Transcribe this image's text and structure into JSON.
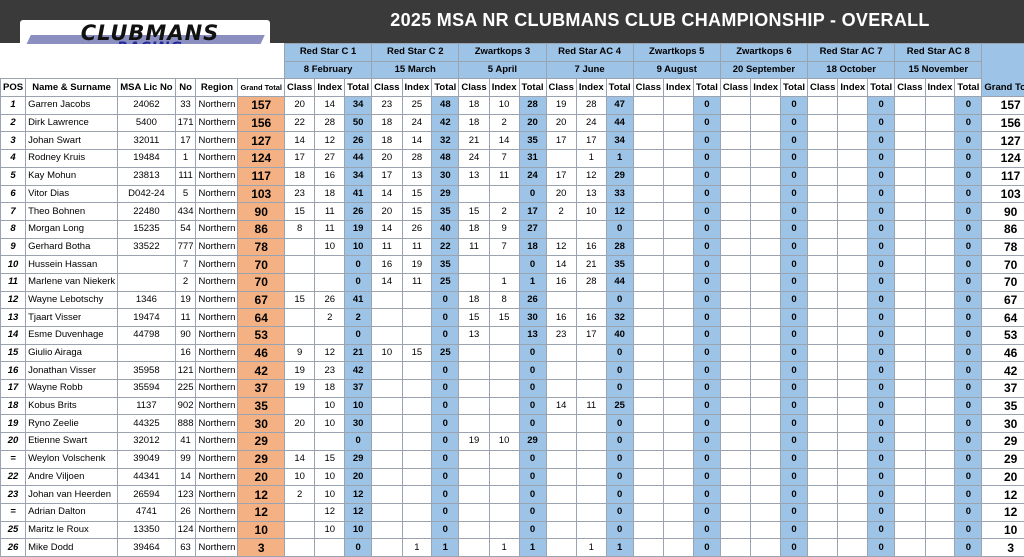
{
  "title": "2025 MSA NR CLUBMANS CLUB CHAMPIONSHIP - OVERALL",
  "logo": {
    "line1": "CLUBMANS",
    "line2": "RACING"
  },
  "rounds": [
    {
      "venue": "Red Star C 1",
      "date": "8 February"
    },
    {
      "venue": "Red Star C 2",
      "date": "15 March"
    },
    {
      "venue": "Zwartkops 3",
      "date": "5 April"
    },
    {
      "venue": "Red Star AC 4",
      "date": "7 June"
    },
    {
      "venue": "Zwartkops 5",
      "date": "9 August"
    },
    {
      "venue": "Zwartkops 6",
      "date": "20 September"
    },
    {
      "venue": "Red Star AC 7",
      "date": "18 October"
    },
    {
      "venue": "Red Star AC 8",
      "date": "15 November"
    }
  ],
  "headers": {
    "pos": "POS",
    "name": "Name & Surname",
    "lic": "MSA Lic No",
    "no": "No",
    "region": "Region",
    "grand_total": "Grand Total",
    "class": "Class",
    "index": "Index",
    "total": "Total",
    "grand_total_right": "Grand Total"
  },
  "rows": [
    {
      "pos": "1",
      "name": "Garren Jacobs",
      "lic": "24062",
      "no": "33",
      "region": "Northern",
      "gt": "157",
      "r": [
        [
          "20",
          "14",
          "34"
        ],
        [
          "23",
          "25",
          "48"
        ],
        [
          "18",
          "10",
          "28"
        ],
        [
          "19",
          "28",
          "47"
        ],
        [
          "",
          "",
          "0"
        ],
        [
          "",
          "",
          "0"
        ],
        [
          "",
          "",
          "0"
        ],
        [
          "",
          "",
          "0"
        ]
      ]
    },
    {
      "pos": "2",
      "name": "Dirk Lawrence",
      "lic": "5400",
      "no": "171",
      "region": "Northern",
      "gt": "156",
      "r": [
        [
          "22",
          "28",
          "50"
        ],
        [
          "18",
          "24",
          "42"
        ],
        [
          "18",
          "2",
          "20"
        ],
        [
          "20",
          "24",
          "44"
        ],
        [
          "",
          "",
          "0"
        ],
        [
          "",
          "",
          "0"
        ],
        [
          "",
          "",
          "0"
        ],
        [
          "",
          "",
          "0"
        ]
      ]
    },
    {
      "pos": "3",
      "name": "Johan Swart",
      "lic": "32011",
      "no": "17",
      "region": "Northern",
      "gt": "127",
      "r": [
        [
          "14",
          "12",
          "26"
        ],
        [
          "18",
          "14",
          "32"
        ],
        [
          "21",
          "14",
          "35"
        ],
        [
          "17",
          "17",
          "34"
        ],
        [
          "",
          "",
          "0"
        ],
        [
          "",
          "",
          "0"
        ],
        [
          "",
          "",
          "0"
        ],
        [
          "",
          "",
          "0"
        ]
      ]
    },
    {
      "pos": "4",
      "name": "Rodney Kruis",
      "lic": "19484",
      "no": "1",
      "region": "Northern",
      "gt": "124",
      "r": [
        [
          "17",
          "27",
          "44"
        ],
        [
          "20",
          "28",
          "48"
        ],
        [
          "24",
          "7",
          "31"
        ],
        [
          "",
          "1",
          "1"
        ],
        [
          "",
          "",
          "0"
        ],
        [
          "",
          "",
          "0"
        ],
        [
          "",
          "",
          "0"
        ],
        [
          "",
          "",
          "0"
        ]
      ]
    },
    {
      "pos": "5",
      "name": "Kay Mohun",
      "lic": "23813",
      "no": "111",
      "region": "Northern",
      "gt": "117",
      "r": [
        [
          "18",
          "16",
          "34"
        ],
        [
          "17",
          "13",
          "30"
        ],
        [
          "13",
          "11",
          "24"
        ],
        [
          "17",
          "12",
          "29"
        ],
        [
          "",
          "",
          "0"
        ],
        [
          "",
          "",
          "0"
        ],
        [
          "",
          "",
          "0"
        ],
        [
          "",
          "",
          "0"
        ]
      ]
    },
    {
      "pos": "6",
      "name": "Vitor Dias",
      "lic": "D042-24",
      "no": "5",
      "region": "Northern",
      "gt": "103",
      "r": [
        [
          "23",
          "18",
          "41"
        ],
        [
          "14",
          "15",
          "29"
        ],
        [
          "",
          "",
          "0"
        ],
        [
          "20",
          "13",
          "33"
        ],
        [
          "",
          "",
          "0"
        ],
        [
          "",
          "",
          "0"
        ],
        [
          "",
          "",
          "0"
        ],
        [
          "",
          "",
          "0"
        ]
      ]
    },
    {
      "pos": "7",
      "name": "Theo Bohnen",
      "lic": "22480",
      "no": "434",
      "region": "Northern",
      "gt": "90",
      "r": [
        [
          "15",
          "11",
          "26"
        ],
        [
          "20",
          "15",
          "35"
        ],
        [
          "15",
          "2",
          "17"
        ],
        [
          "2",
          "10",
          "12"
        ],
        [
          "",
          "",
          "0"
        ],
        [
          "",
          "",
          "0"
        ],
        [
          "",
          "",
          "0"
        ],
        [
          "",
          "",
          "0"
        ]
      ]
    },
    {
      "pos": "8",
      "name": "Morgan Long",
      "lic": "15235",
      "no": "54",
      "region": "Northern",
      "gt": "86",
      "r": [
        [
          "8",
          "11",
          "19"
        ],
        [
          "14",
          "26",
          "40"
        ],
        [
          "18",
          "9",
          "27"
        ],
        [
          "",
          "",
          "0"
        ],
        [
          "",
          "",
          "0"
        ],
        [
          "",
          "",
          "0"
        ],
        [
          "",
          "",
          "0"
        ],
        [
          "",
          "",
          "0"
        ]
      ]
    },
    {
      "pos": "9",
      "name": "Gerhard Botha",
      "lic": "33522",
      "no": "777",
      "region": "Northern",
      "gt": "78",
      "r": [
        [
          "",
          "10",
          "10"
        ],
        [
          "11",
          "11",
          "22"
        ],
        [
          "11",
          "7",
          "18"
        ],
        [
          "12",
          "16",
          "28"
        ],
        [
          "",
          "",
          "0"
        ],
        [
          "",
          "",
          "0"
        ],
        [
          "",
          "",
          "0"
        ],
        [
          "",
          "",
          "0"
        ]
      ]
    },
    {
      "pos": "10",
      "name": "Hussein Hassan",
      "lic": "",
      "no": "7",
      "region": "Northern",
      "gt": "70",
      "r": [
        [
          "",
          "",
          "0"
        ],
        [
          "16",
          "19",
          "35"
        ],
        [
          "",
          "",
          "0"
        ],
        [
          "14",
          "21",
          "35"
        ],
        [
          "",
          "",
          "0"
        ],
        [
          "",
          "",
          "0"
        ],
        [
          "",
          "",
          "0"
        ],
        [
          "",
          "",
          "0"
        ]
      ]
    },
    {
      "pos": "11",
      "name": "Marlene van Niekerk",
      "lic": "",
      "no": "2",
      "region": "Northern",
      "gt": "70",
      "r": [
        [
          "",
          "",
          "0"
        ],
        [
          "14",
          "11",
          "25"
        ],
        [
          "",
          "1",
          "1"
        ],
        [
          "16",
          "28",
          "44"
        ],
        [
          "",
          "",
          "0"
        ],
        [
          "",
          "",
          "0"
        ],
        [
          "",
          "",
          "0"
        ],
        [
          "",
          "",
          "0"
        ]
      ]
    },
    {
      "pos": "12",
      "name": "Wayne Lebotschy",
      "lic": "1346",
      "no": "19",
      "region": "Northern",
      "gt": "67",
      "r": [
        [
          "15",
          "26",
          "41"
        ],
        [
          "",
          "",
          "0"
        ],
        [
          "18",
          "8",
          "26"
        ],
        [
          "",
          "",
          "0"
        ],
        [
          "",
          "",
          "0"
        ],
        [
          "",
          "",
          "0"
        ],
        [
          "",
          "",
          "0"
        ],
        [
          "",
          "",
          "0"
        ]
      ]
    },
    {
      "pos": "13",
      "name": "Tjaart Visser",
      "lic": "19474",
      "no": "11",
      "region": "Northern",
      "gt": "64",
      "r": [
        [
          "",
          "2",
          "2"
        ],
        [
          "",
          "",
          "0"
        ],
        [
          "15",
          "15",
          "30"
        ],
        [
          "16",
          "16",
          "32"
        ],
        [
          "",
          "",
          "0"
        ],
        [
          "",
          "",
          "0"
        ],
        [
          "",
          "",
          "0"
        ],
        [
          "",
          "",
          "0"
        ]
      ]
    },
    {
      "pos": "14",
      "name": "Esme Duvenhage",
      "lic": "44798",
      "no": "90",
      "region": "Northern",
      "gt": "53",
      "r": [
        [
          "",
          "",
          "0"
        ],
        [
          "",
          "",
          "0"
        ],
        [
          "13",
          "",
          "13"
        ],
        [
          "23",
          "17",
          "40"
        ],
        [
          "",
          "",
          "0"
        ],
        [
          "",
          "",
          "0"
        ],
        [
          "",
          "",
          "0"
        ],
        [
          "",
          "",
          "0"
        ]
      ]
    },
    {
      "pos": "15",
      "name": "Giulio Airaga",
      "lic": "",
      "no": "16",
      "region": "Northern",
      "gt": "46",
      "r": [
        [
          "9",
          "12",
          "21"
        ],
        [
          "10",
          "15",
          "25"
        ],
        [
          "",
          "",
          "0"
        ],
        [
          "",
          "",
          "0"
        ],
        [
          "",
          "",
          "0"
        ],
        [
          "",
          "",
          "0"
        ],
        [
          "",
          "",
          "0"
        ],
        [
          "",
          "",
          "0"
        ]
      ]
    },
    {
      "pos": "16",
      "name": "Jonathan Visser",
      "lic": "35958",
      "no": "121",
      "region": "Northern",
      "gt": "42",
      "r": [
        [
          "19",
          "23",
          "42"
        ],
        [
          "",
          "",
          "0"
        ],
        [
          "",
          "",
          "0"
        ],
        [
          "",
          "",
          "0"
        ],
        [
          "",
          "",
          "0"
        ],
        [
          "",
          "",
          "0"
        ],
        [
          "",
          "",
          "0"
        ],
        [
          "",
          "",
          "0"
        ]
      ]
    },
    {
      "pos": "17",
      "name": "Wayne Robb",
      "lic": "35594",
      "no": "225",
      "region": "Northern",
      "gt": "37",
      "r": [
        [
          "19",
          "18",
          "37"
        ],
        [
          "",
          "",
          "0"
        ],
        [
          "",
          "",
          "0"
        ],
        [
          "",
          "",
          "0"
        ],
        [
          "",
          "",
          "0"
        ],
        [
          "",
          "",
          "0"
        ],
        [
          "",
          "",
          "0"
        ],
        [
          "",
          "",
          "0"
        ]
      ]
    },
    {
      "pos": "18",
      "name": "Kobus Brits",
      "lic": "1137",
      "no": "902",
      "region": "Northern",
      "gt": "35",
      "r": [
        [
          "",
          "10",
          "10"
        ],
        [
          "",
          "",
          "0"
        ],
        [
          "",
          "",
          "0"
        ],
        [
          "14",
          "11",
          "25"
        ],
        [
          "",
          "",
          "0"
        ],
        [
          "",
          "",
          "0"
        ],
        [
          "",
          "",
          "0"
        ],
        [
          "",
          "",
          "0"
        ]
      ]
    },
    {
      "pos": "19",
      "name": "Ryno Zeelie",
      "lic": "44325",
      "no": "888",
      "region": "Northern",
      "gt": "30",
      "r": [
        [
          "20",
          "10",
          "30"
        ],
        [
          "",
          "",
          "0"
        ],
        [
          "",
          "",
          "0"
        ],
        [
          "",
          "",
          "0"
        ],
        [
          "",
          "",
          "0"
        ],
        [
          "",
          "",
          "0"
        ],
        [
          "",
          "",
          "0"
        ],
        [
          "",
          "",
          "0"
        ]
      ]
    },
    {
      "pos": "20",
      "name": "Etienne Swart",
      "lic": "32012",
      "no": "41",
      "region": "Northern",
      "gt": "29",
      "r": [
        [
          "",
          "",
          "0"
        ],
        [
          "",
          "",
          "0"
        ],
        [
          "19",
          "10",
          "29"
        ],
        [
          "",
          "",
          "0"
        ],
        [
          "",
          "",
          "0"
        ],
        [
          "",
          "",
          "0"
        ],
        [
          "",
          "",
          "0"
        ],
        [
          "",
          "",
          "0"
        ]
      ]
    },
    {
      "pos": "=",
      "name": "Weylon Volschenk",
      "lic": "39049",
      "no": "99",
      "region": "Northern",
      "gt": "29",
      "r": [
        [
          "14",
          "15",
          "29"
        ],
        [
          "",
          "",
          "0"
        ],
        [
          "",
          "",
          "0"
        ],
        [
          "",
          "",
          "0"
        ],
        [
          "",
          "",
          "0"
        ],
        [
          "",
          "",
          "0"
        ],
        [
          "",
          "",
          "0"
        ],
        [
          "",
          "",
          "0"
        ]
      ]
    },
    {
      "pos": "22",
      "name": "Andre Viljoen",
      "lic": "44341",
      "no": "14",
      "region": "Northern",
      "gt": "20",
      "r": [
        [
          "10",
          "10",
          "20"
        ],
        [
          "",
          "",
          "0"
        ],
        [
          "",
          "",
          "0"
        ],
        [
          "",
          "",
          "0"
        ],
        [
          "",
          "",
          "0"
        ],
        [
          "",
          "",
          "0"
        ],
        [
          "",
          "",
          "0"
        ],
        [
          "",
          "",
          "0"
        ]
      ]
    },
    {
      "pos": "23",
      "name": "Johan van Heerden",
      "lic": "26594",
      "no": "123",
      "region": "Northern",
      "gt": "12",
      "r": [
        [
          "2",
          "10",
          "12"
        ],
        [
          "",
          "",
          "0"
        ],
        [
          "",
          "",
          "0"
        ],
        [
          "",
          "",
          "0"
        ],
        [
          "",
          "",
          "0"
        ],
        [
          "",
          "",
          "0"
        ],
        [
          "",
          "",
          "0"
        ],
        [
          "",
          "",
          "0"
        ]
      ]
    },
    {
      "pos": "=",
      "name": "Adrian Dalton",
      "lic": "4741",
      "no": "26",
      "region": "Northern",
      "gt": "12",
      "r": [
        [
          "",
          "12",
          "12"
        ],
        [
          "",
          "",
          "0"
        ],
        [
          "",
          "",
          "0"
        ],
        [
          "",
          "",
          "0"
        ],
        [
          "",
          "",
          "0"
        ],
        [
          "",
          "",
          "0"
        ],
        [
          "",
          "",
          "0"
        ],
        [
          "",
          "",
          "0"
        ]
      ]
    },
    {
      "pos": "25",
      "name": "Maritz le Roux",
      "lic": "13350",
      "no": "124",
      "region": "Northern",
      "gt": "10",
      "r": [
        [
          "",
          "10",
          "10"
        ],
        [
          "",
          "",
          "0"
        ],
        [
          "",
          "",
          "0"
        ],
        [
          "",
          "",
          "0"
        ],
        [
          "",
          "",
          "0"
        ],
        [
          "",
          "",
          "0"
        ],
        [
          "",
          "",
          "0"
        ],
        [
          "",
          "",
          "0"
        ]
      ]
    },
    {
      "pos": "26",
      "name": "Mike Dodd",
      "lic": "39464",
      "no": "63",
      "region": "Northern",
      "gt": "3",
      "r": [
        [
          "",
          "",
          "0"
        ],
        [
          "",
          "1",
          "1"
        ],
        [
          "",
          "1",
          "1"
        ],
        [
          "",
          "1",
          "1"
        ],
        [
          "",
          "",
          "0"
        ],
        [
          "",
          "",
          "0"
        ],
        [
          "",
          "",
          "0"
        ],
        [
          "",
          "",
          "0"
        ]
      ]
    }
  ]
}
